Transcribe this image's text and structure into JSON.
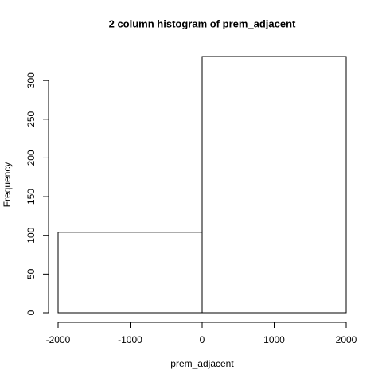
{
  "chart_data": {
    "type": "histogram",
    "title": "2 column histogram of prem_adjacent",
    "x_label": "prem_adjacent",
    "y_label": "Frequency",
    "bins": [
      -2000,
      0,
      2000
    ],
    "counts": [
      104,
      331
    ],
    "color": "#ffffff",
    "xlim": [
      -2000,
      2000
    ],
    "xticks": [
      -2000,
      -1000,
      0,
      1000,
      2000
    ],
    "ylim": [
      0,
      331
    ],
    "yticks": [
      0,
      50,
      100,
      150,
      200,
      250,
      300
    ],
    "grid": false
  }
}
